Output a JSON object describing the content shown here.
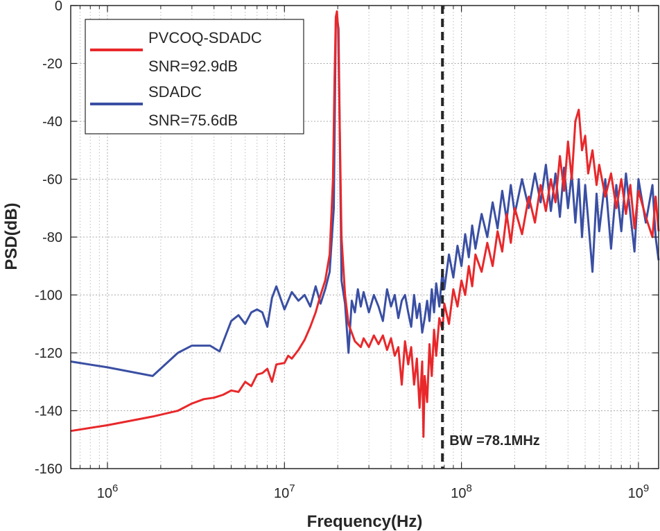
{
  "chart_data": {
    "type": "line",
    "xscale": "log",
    "xlabel": "Frequency(Hz)",
    "ylabel": "PSD(dB)",
    "xlim": [
      620000,
      1300000000
    ],
    "ylim": [
      -160,
      0
    ],
    "yticks": [
      0,
      -20,
      -40,
      -60,
      -80,
      -100,
      -120,
      -140,
      -160
    ],
    "xtick_labels": [
      {
        "base": "10",
        "exp": "6",
        "value": 1000000
      },
      {
        "base": "10",
        "exp": "7",
        "value": 10000000
      },
      {
        "base": "10",
        "exp": "8",
        "value": 100000000
      },
      {
        "base": "10",
        "exp": "9",
        "value": 1000000000
      }
    ],
    "grid": true,
    "legend_position": "top-left",
    "colors": {
      "red": "#e8282b",
      "blue": "#3a4fa3",
      "bandwidth": "#262626"
    },
    "series": [
      {
        "name": "PVCOQ-SDADC",
        "snr_label": "SNR=92.9dB",
        "color": "#e8282b",
        "points": [
          [
            620000,
            -147
          ],
          [
            1000000,
            -145
          ],
          [
            1800000,
            -142
          ],
          [
            2500000,
            -140
          ],
          [
            3000000,
            -137.5
          ],
          [
            3500000,
            -136
          ],
          [
            4000000,
            -135.5
          ],
          [
            4500000,
            -134.5
          ],
          [
            5000000,
            -133
          ],
          [
            5500000,
            -133.5
          ],
          [
            6000000,
            -130
          ],
          [
            6500000,
            -131.5
          ],
          [
            7000000,
            -127.5
          ],
          [
            7500000,
            -127
          ],
          [
            8000000,
            -125.5
          ],
          [
            8500000,
            -130
          ],
          [
            9000000,
            -124
          ],
          [
            10000000,
            -123.5
          ],
          [
            10500000,
            -121
          ],
          [
            11000000,
            -122
          ],
          [
            12000000,
            -119
          ],
          [
            13000000,
            -115.5
          ],
          [
            14000000,
            -111
          ],
          [
            15000000,
            -106
          ],
          [
            16000000,
            -100
          ],
          [
            17000000,
            -95
          ],
          [
            18000000,
            -86
          ],
          [
            18800000,
            -60
          ],
          [
            19200000,
            -25
          ],
          [
            19500000,
            -4
          ],
          [
            19800000,
            -2
          ],
          [
            20100000,
            -8
          ],
          [
            20500000,
            -40
          ],
          [
            21000000,
            -80
          ],
          [
            22000000,
            -100
          ],
          [
            23000000,
            -110
          ],
          [
            25000000,
            -116
          ],
          [
            27000000,
            -118
          ],
          [
            28000000,
            -115
          ],
          [
            30000000,
            -118
          ],
          [
            32000000,
            -114
          ],
          [
            34000000,
            -117
          ],
          [
            36000000,
            -114
          ],
          [
            38000000,
            -119
          ],
          [
            40000000,
            -115
          ],
          [
            42000000,
            -121
          ],
          [
            44000000,
            -118
          ],
          [
            46000000,
            -131
          ],
          [
            48000000,
            -116
          ],
          [
            50000000,
            -124
          ],
          [
            52000000,
            -118
          ],
          [
            54000000,
            -131
          ],
          [
            56000000,
            -122
          ],
          [
            58000000,
            -139
          ],
          [
            60000000,
            -123
          ],
          [
            61000000,
            -149
          ],
          [
            62000000,
            -128
          ],
          [
            64000000,
            -137
          ],
          [
            66000000,
            -117
          ],
          [
            68000000,
            -128
          ],
          [
            70000000,
            -112
          ],
          [
            72000000,
            -121
          ],
          [
            75000000,
            -108
          ],
          [
            78000000,
            -112
          ],
          [
            80000000,
            -103
          ],
          [
            85000000,
            -110
          ],
          [
            90000000,
            -98
          ],
          [
            95000000,
            -104
          ],
          [
            100000000,
            -95
          ],
          [
            105000000,
            -100
          ],
          [
            110000000,
            -90
          ],
          [
            115000000,
            -97
          ],
          [
            120000000,
            -86
          ],
          [
            130000000,
            -92
          ],
          [
            140000000,
            -82
          ],
          [
            150000000,
            -90
          ],
          [
            160000000,
            -78
          ],
          [
            170000000,
            -85
          ],
          [
            180000000,
            -72
          ],
          [
            190000000,
            -82
          ],
          [
            200000000,
            -70
          ],
          [
            220000000,
            -79
          ],
          [
            240000000,
            -66
          ],
          [
            260000000,
            -75
          ],
          [
            280000000,
            -62
          ],
          [
            300000000,
            -71
          ],
          [
            320000000,
            -60
          ],
          [
            340000000,
            -68
          ],
          [
            360000000,
            -52
          ],
          [
            380000000,
            -64
          ],
          [
            400000000,
            -47
          ],
          [
            420000000,
            -60
          ],
          [
            440000000,
            -40
          ],
          [
            460000000,
            -36
          ],
          [
            480000000,
            -50
          ],
          [
            500000000,
            -45
          ],
          [
            520000000,
            -58
          ],
          [
            550000000,
            -50
          ],
          [
            580000000,
            -62
          ],
          [
            600000000,
            -55
          ],
          [
            650000000,
            -66
          ],
          [
            700000000,
            -58
          ],
          [
            750000000,
            -70
          ],
          [
            800000000,
            -60
          ],
          [
            850000000,
            -72
          ],
          [
            900000000,
            -62
          ],
          [
            950000000,
            -77
          ],
          [
            1000000000,
            -64
          ],
          [
            1100000000,
            -73
          ],
          [
            1200000000,
            -80
          ],
          [
            1250000000,
            -66
          ],
          [
            1300000000,
            -78
          ]
        ]
      },
      {
        "name": "SDADC",
        "snr_label": "SNR=75.6dB",
        "color": "#3a4fa3",
        "points": [
          [
            620000,
            -123
          ],
          [
            1000000,
            -125
          ],
          [
            1800000,
            -128
          ],
          [
            2500000,
            -120
          ],
          [
            3000000,
            -117.5
          ],
          [
            3800000,
            -117.5
          ],
          [
            4300000,
            -119.5
          ],
          [
            5000000,
            -109
          ],
          [
            5500000,
            -107
          ],
          [
            6000000,
            -110
          ],
          [
            6500000,
            -106
          ],
          [
            7000000,
            -105
          ],
          [
            7500000,
            -106
          ],
          [
            8000000,
            -111
          ],
          [
            8500000,
            -101
          ],
          [
            9000000,
            -97
          ],
          [
            10000000,
            -105
          ],
          [
            11000000,
            -99
          ],
          [
            12000000,
            -102
          ],
          [
            13000000,
            -100
          ],
          [
            14000000,
            -104
          ],
          [
            15000000,
            -97
          ],
          [
            16000000,
            -103
          ],
          [
            17000000,
            -98
          ],
          [
            18000000,
            -92
          ],
          [
            19000000,
            -70
          ],
          [
            19500000,
            -5
          ],
          [
            19800000,
            -4
          ],
          [
            20200000,
            -8
          ],
          [
            20600000,
            -50
          ],
          [
            21000000,
            -95
          ],
          [
            22000000,
            -103
          ],
          [
            23000000,
            -120
          ],
          [
            24000000,
            -102
          ],
          [
            25000000,
            -106
          ],
          [
            26000000,
            -98
          ],
          [
            27000000,
            -104
          ],
          [
            28000000,
            -99
          ],
          [
            30000000,
            -106
          ],
          [
            32000000,
            -100
          ],
          [
            34000000,
            -104
          ],
          [
            36000000,
            -109
          ],
          [
            38000000,
            -98
          ],
          [
            40000000,
            -104
          ],
          [
            42000000,
            -100
          ],
          [
            44000000,
            -108
          ],
          [
            46000000,
            -102
          ],
          [
            48000000,
            -100
          ],
          [
            50000000,
            -106
          ],
          [
            52000000,
            -111
          ],
          [
            54000000,
            -100
          ],
          [
            56000000,
            -108
          ],
          [
            58000000,
            -103
          ],
          [
            60000000,
            -113
          ],
          [
            62000000,
            -108
          ],
          [
            64000000,
            -102
          ],
          [
            66000000,
            -109
          ],
          [
            68000000,
            -98
          ],
          [
            70000000,
            -106
          ],
          [
            72000000,
            -96
          ],
          [
            75000000,
            -104
          ],
          [
            78000000,
            -92
          ],
          [
            80000000,
            -98
          ],
          [
            85000000,
            -86
          ],
          [
            90000000,
            -94
          ],
          [
            95000000,
            -83
          ],
          [
            100000000,
            -90
          ],
          [
            105000000,
            -79
          ],
          [
            110000000,
            -87
          ],
          [
            115000000,
            -76
          ],
          [
            120000000,
            -84
          ],
          [
            130000000,
            -72
          ],
          [
            140000000,
            -80
          ],
          [
            150000000,
            -68
          ],
          [
            160000000,
            -77
          ],
          [
            170000000,
            -64
          ],
          [
            180000000,
            -74
          ],
          [
            190000000,
            -62
          ],
          [
            200000000,
            -72
          ],
          [
            220000000,
            -60
          ],
          [
            240000000,
            -70
          ],
          [
            260000000,
            -58
          ],
          [
            280000000,
            -68
          ],
          [
            300000000,
            -55
          ],
          [
            320000000,
            -71
          ],
          [
            340000000,
            -58
          ],
          [
            360000000,
            -73
          ],
          [
            380000000,
            -56
          ],
          [
            400000000,
            -70
          ],
          [
            420000000,
            -58
          ],
          [
            440000000,
            -75
          ],
          [
            460000000,
            -60
          ],
          [
            480000000,
            -80
          ],
          [
            500000000,
            -62
          ],
          [
            520000000,
            -74
          ],
          [
            550000000,
            -92
          ],
          [
            580000000,
            -65
          ],
          [
            600000000,
            -78
          ],
          [
            650000000,
            -60
          ],
          [
            700000000,
            -84
          ],
          [
            750000000,
            -62
          ],
          [
            800000000,
            -78
          ],
          [
            850000000,
            -58
          ],
          [
            900000000,
            -72
          ],
          [
            950000000,
            -85
          ],
          [
            1000000000,
            -60
          ],
          [
            1100000000,
            -75
          ],
          [
            1200000000,
            -62
          ],
          [
            1250000000,
            -80
          ],
          [
            1300000000,
            -88
          ]
        ]
      }
    ],
    "bandwidth_marker": {
      "value": 78100000,
      "label": "BW =78.1MHz"
    }
  }
}
